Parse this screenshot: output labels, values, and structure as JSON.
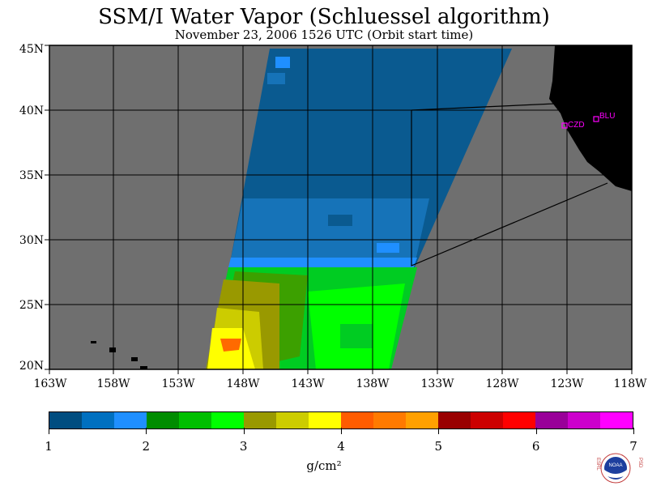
{
  "title": "SSM/I Water Vapor (Schluessel algorithm)",
  "subtitle": "November 23, 2006  1526 UTC  (Orbit start time)",
  "lat_labels": [
    "45N",
    "40N",
    "35N",
    "30N",
    "25N",
    "20N"
  ],
  "lon_labels": [
    "163W",
    "158W",
    "153W",
    "148W",
    "143W",
    "138W",
    "133W",
    "128W",
    "123W",
    "118W"
  ],
  "stations": [
    {
      "code": "CZD"
    },
    {
      "code": "BLU"
    }
  ],
  "colorbar": {
    "colors": [
      "#004d80",
      "#0070c0",
      "#1f8fff",
      "#008c00",
      "#00bf00",
      "#00ff00",
      "#999900",
      "#cccc00",
      "#ffff00",
      "#ff5c00",
      "#ff7a00",
      "#ffa000",
      "#990000",
      "#cc0000",
      "#ff0000",
      "#990099",
      "#cc00cc",
      "#ff00ff"
    ],
    "labels": [
      "1",
      "2",
      "3",
      "4",
      "5",
      "6",
      "7"
    ],
    "unit": "g/cm²"
  },
  "logo": {
    "left": "ESRL",
    "right": "PSD",
    "center": "NOAA"
  },
  "colors": {
    "land": "#000000",
    "nodata": "#6f6f6f",
    "station": "#ff00ff"
  }
}
